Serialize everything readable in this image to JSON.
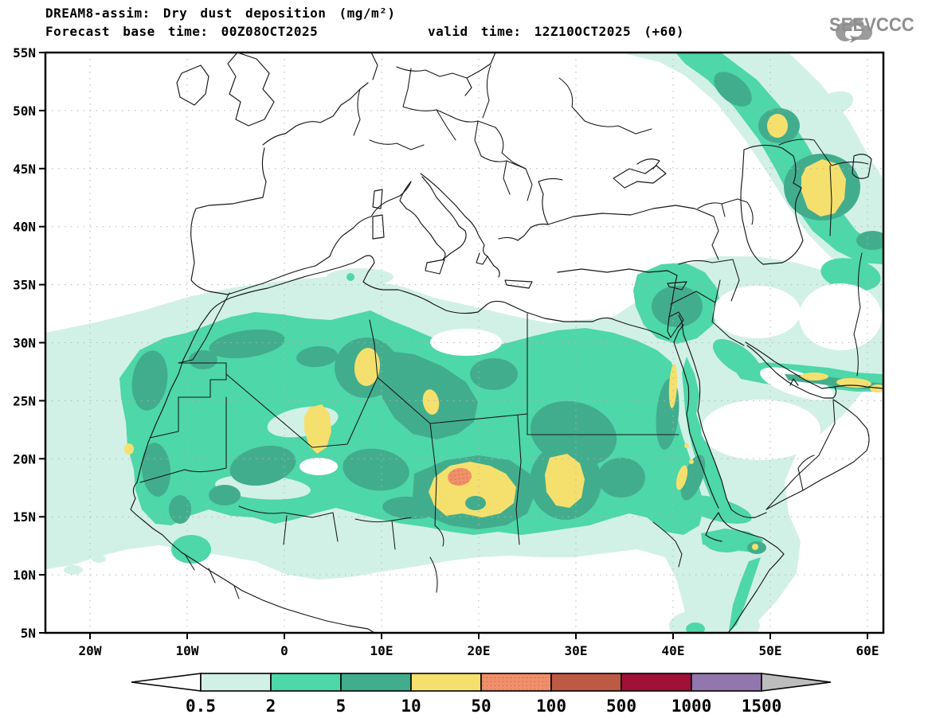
{
  "header": {
    "title": "DREAM8-assim: Dry dust deposition (mg/m²)",
    "base_time": "Forecast base time: 00Z08OCT2025",
    "valid_time": "valid time: 12Z10OCT2025 (+60)",
    "logo_text": "SEEVCCC"
  },
  "axes": {
    "lat_labels": [
      "55N",
      "50N",
      "45N",
      "40N",
      "35N",
      "30N",
      "25N",
      "20N",
      "15N",
      "10N",
      "5N"
    ],
    "lon_labels": [
      "20W",
      "10W",
      "0",
      "10E",
      "20E",
      "30E",
      "40E",
      "50E",
      "60E"
    ]
  },
  "colorbar": {
    "tick_labels": [
      "0.5",
      "2",
      "5",
      "10",
      "50",
      "100",
      "500",
      "1000",
      "1500"
    ],
    "segments": [
      "cyan",
      "green",
      "teal",
      "yellow",
      "salmon",
      "brick",
      "maroon",
      "purple"
    ],
    "under": "white",
    "over": "gray_over"
  },
  "palette": {
    "white": "#ffffff",
    "cyan": "#d2f1e6",
    "green": "#4ed7a8",
    "teal": "#42ad8d",
    "yellow": "#f5e06e",
    "salmon": "#f0906a",
    "brick": "#bc5a44",
    "maroon": "#a11039",
    "purple": "#9177ae",
    "gray_over": "#bdbdbd",
    "logo_gray": "#9b9b9b"
  },
  "map_meta": {
    "lat_range": [
      "5N",
      "55N"
    ],
    "lon_range": [
      "20W",
      "60E"
    ],
    "levels": [
      0.5,
      2,
      5,
      10,
      50,
      100,
      500,
      1000,
      1500
    ]
  }
}
